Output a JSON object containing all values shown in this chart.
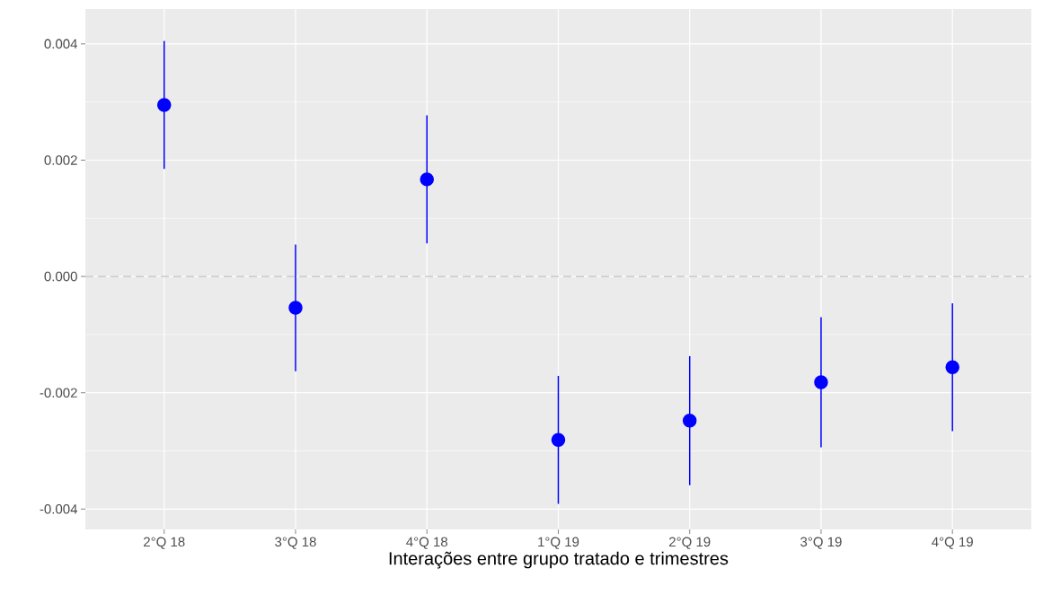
{
  "chart_data": {
    "type": "scatter",
    "xlabel": "Interações entre grupo tratado e trimestres",
    "categories": [
      "2°Q 18",
      "3°Q 18",
      "4°Q 18",
      "1°Q 19",
      "2°Q 19",
      "3°Q 19",
      "4°Q 19"
    ],
    "values": [
      0.00295,
      -0.00054,
      0.00167,
      -0.00281,
      -0.00248,
      -0.00182,
      -0.00156
    ],
    "errors": [
      0.0011,
      0.00109,
      0.0011,
      0.0011,
      0.00111,
      0.00112,
      0.0011
    ],
    "color": "#0000ff",
    "marker": "circle",
    "ylim": [
      -0.00435,
      0.0046
    ],
    "yticks": [
      {
        "value": -0.004,
        "label": "-0.004"
      },
      {
        "value": -0.002,
        "label": "-0.002"
      },
      {
        "value": 0,
        "label": "0.000"
      },
      {
        "value": 0.002,
        "label": "0.002"
      },
      {
        "value": 0.004,
        "label": "0.004"
      }
    ],
    "ref_lines": [
      {
        "axis": "y",
        "value": 0,
        "color": "#bebebe",
        "line_style": "dashed"
      }
    ],
    "grid": true
  }
}
